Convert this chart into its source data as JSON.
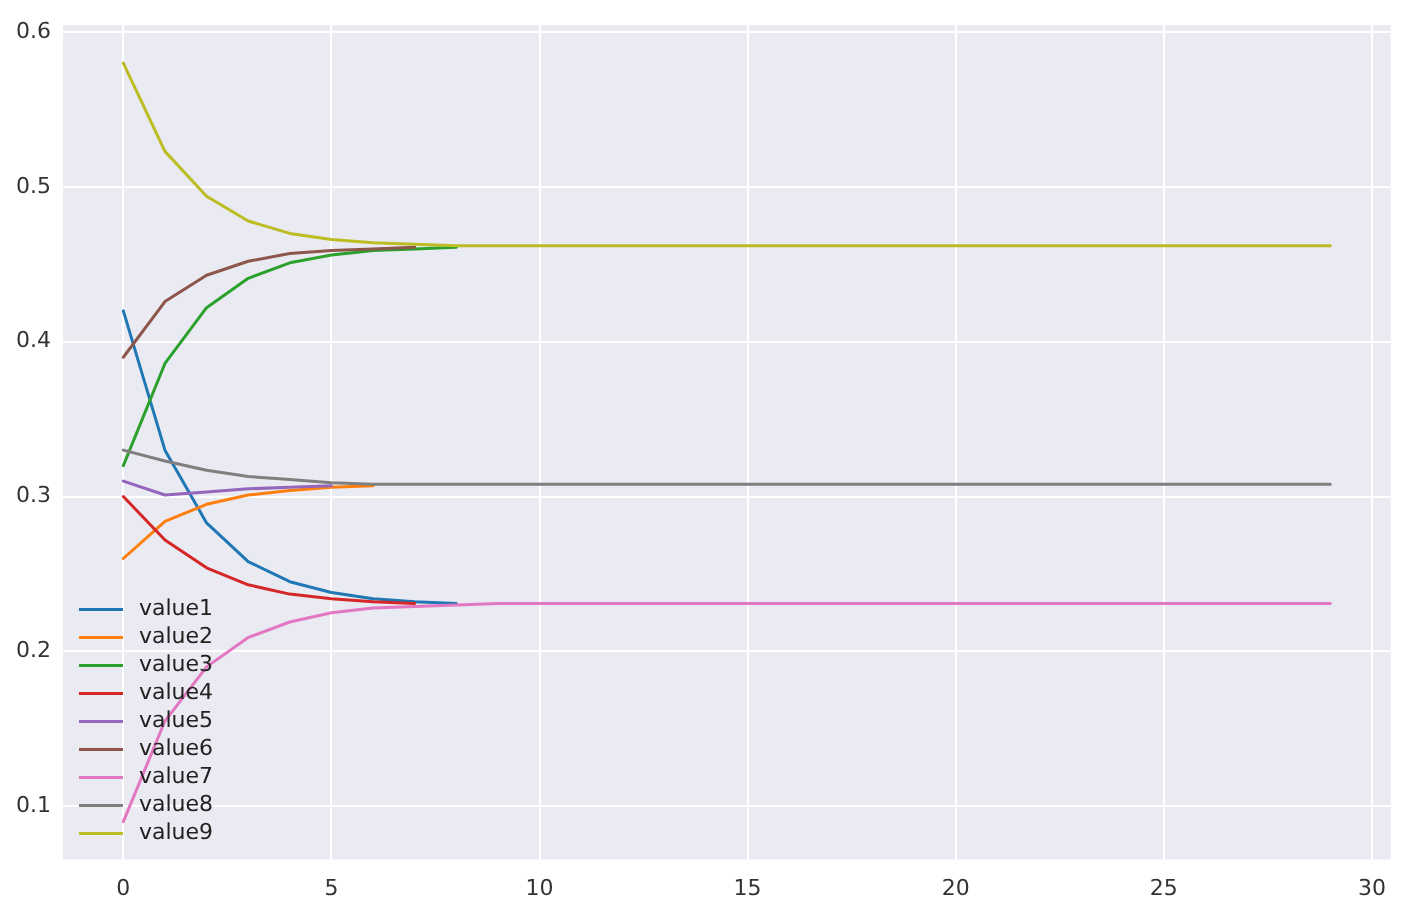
{
  "chart_data": {
    "type": "line",
    "x": [
      0,
      1,
      2,
      3,
      4,
      5,
      6,
      7,
      8,
      9,
      10,
      11,
      12,
      13,
      14,
      15,
      16,
      17,
      18,
      19,
      20,
      21,
      22,
      23,
      24,
      25,
      26,
      27,
      28,
      29
    ],
    "series": [
      {
        "name": "value1",
        "color": "#1f77b4",
        "values": [
          0.42,
          0.33,
          0.283,
          0.258,
          0.245,
          0.238,
          0.234,
          0.232,
          0.231,
          null,
          null,
          null,
          null,
          null,
          null,
          null,
          null,
          null,
          null,
          null,
          null,
          null,
          null,
          null,
          null,
          null,
          null,
          null,
          null,
          null
        ]
      },
      {
        "name": "value2",
        "color": "#ff7f0e",
        "values": [
          0.26,
          0.284,
          0.295,
          0.301,
          0.304,
          0.306,
          0.307,
          null,
          null,
          null,
          null,
          null,
          null,
          null,
          null,
          null,
          null,
          null,
          null,
          null,
          null,
          null,
          null,
          null,
          null,
          null,
          null,
          null,
          null,
          null
        ]
      },
      {
        "name": "value3",
        "color": "#2ca02c",
        "values": [
          0.32,
          0.386,
          0.422,
          0.441,
          0.451,
          0.456,
          0.459,
          0.46,
          0.461,
          null,
          null,
          null,
          null,
          null,
          null,
          null,
          null,
          null,
          null,
          null,
          null,
          null,
          null,
          null,
          null,
          null,
          null,
          null,
          null,
          null
        ]
      },
      {
        "name": "value4",
        "color": "#d62728",
        "values": [
          0.3,
          0.272,
          0.254,
          0.243,
          0.237,
          0.234,
          0.232,
          0.231,
          null,
          null,
          null,
          null,
          null,
          null,
          null,
          null,
          null,
          null,
          null,
          null,
          null,
          null,
          null,
          null,
          null,
          null,
          null,
          null,
          null,
          null
        ]
      },
      {
        "name": "value5",
        "color": "#9467bd",
        "values": [
          0.31,
          0.301,
          0.303,
          0.305,
          0.306,
          0.307,
          null,
          null,
          null,
          null,
          null,
          null,
          null,
          null,
          null,
          null,
          null,
          null,
          null,
          null,
          null,
          null,
          null,
          null,
          null,
          null,
          null,
          null,
          null,
          null
        ]
      },
      {
        "name": "value6",
        "color": "#8c564b",
        "values": [
          0.39,
          0.426,
          0.443,
          0.452,
          0.457,
          0.459,
          0.46,
          0.461,
          null,
          null,
          null,
          null,
          null,
          null,
          null,
          null,
          null,
          null,
          null,
          null,
          null,
          null,
          null,
          null,
          null,
          null,
          null,
          null,
          null,
          null
        ]
      },
      {
        "name": "value7",
        "color": "#e377c2",
        "values": [
          0.09,
          0.155,
          0.19,
          0.209,
          0.219,
          0.225,
          0.228,
          0.229,
          0.23,
          0.231,
          0.231,
          0.231,
          0.231,
          0.231,
          0.231,
          0.231,
          0.231,
          0.231,
          0.231,
          0.231,
          0.231,
          0.231,
          0.231,
          0.231,
          0.231,
          0.231,
          0.231,
          0.231,
          0.231,
          0.231
        ]
      },
      {
        "name": "value8",
        "color": "#7f7f7f",
        "values": [
          0.33,
          0.323,
          0.317,
          0.313,
          0.311,
          0.309,
          0.308,
          0.308,
          0.308,
          0.308,
          0.308,
          0.308,
          0.308,
          0.308,
          0.308,
          0.308,
          0.308,
          0.308,
          0.308,
          0.308,
          0.308,
          0.308,
          0.308,
          0.308,
          0.308,
          0.308,
          0.308,
          0.308,
          0.308,
          0.308
        ]
      },
      {
        "name": "value9",
        "color": "#bcbd22",
        "values": [
          0.58,
          0.523,
          0.494,
          0.478,
          0.47,
          0.466,
          0.464,
          0.463,
          0.462,
          0.462,
          0.462,
          0.462,
          0.462,
          0.462,
          0.462,
          0.462,
          0.462,
          0.462,
          0.462,
          0.462,
          0.462,
          0.462,
          0.462,
          0.462,
          0.462,
          0.462,
          0.462,
          0.462,
          0.462,
          0.462
        ]
      }
    ],
    "xlim": [
      -1.45,
      30.45
    ],
    "xticks": [
      0,
      5,
      10,
      15,
      20,
      25,
      30
    ],
    "ylim": [
      0.0655,
      0.6045
    ],
    "yticks": [
      0.1,
      0.2,
      0.3,
      0.4,
      0.5,
      0.6
    ],
    "grid": true,
    "legend": "bottom left",
    "marker": "none",
    "line_style": "solid"
  }
}
